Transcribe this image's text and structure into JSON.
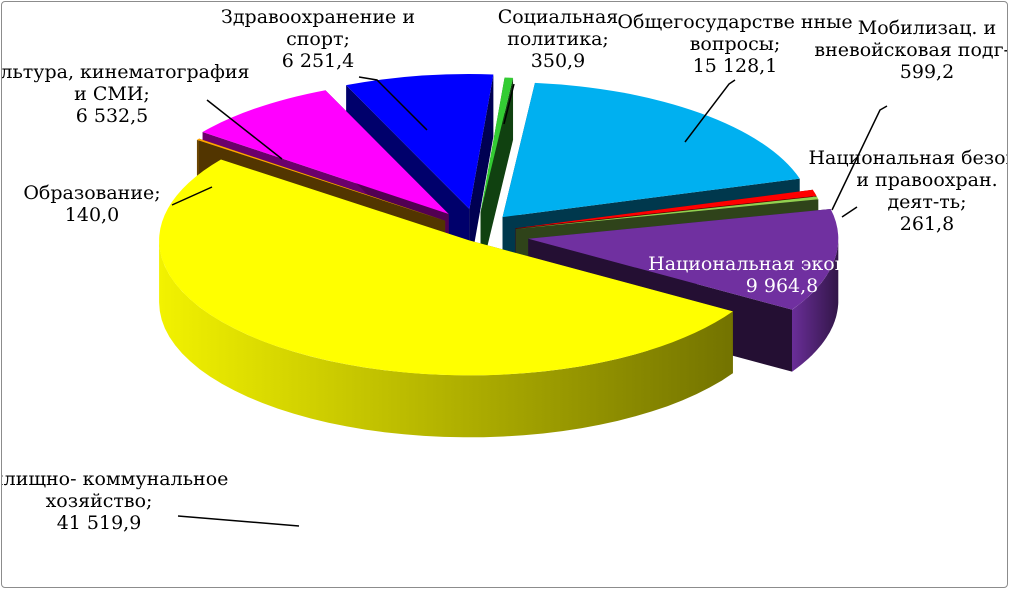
{
  "chart_data": {
    "type": "pie",
    "style": "3d-exploded",
    "title": "",
    "separator": ";",
    "slices": [
      {
        "name": "Общегосударстве нные вопросы",
        "value": 15128.1,
        "display": "15 128,1",
        "color": "#00b0f0"
      },
      {
        "name": "Мобилизац. и вневойсковая подг-ка",
        "value": 599.2,
        "display": "599,2",
        "color": "#ff0000"
      },
      {
        "name": "Национальная безоп-ть и правоохран. деят-ть",
        "value": 261.8,
        "display": "261,8",
        "color": "#92d050"
      },
      {
        "name": "Национальная экономика",
        "value": 9964.8,
        "display": "9 964,8",
        "color": "#7030a0"
      },
      {
        "name": "Жилищно- коммунальное хозяйство",
        "value": 41519.9,
        "display": "41 519,9",
        "color": "#ffff00"
      },
      {
        "name": "Образование",
        "value": 140.0,
        "display": "140,0",
        "color": "#ffa500"
      },
      {
        "name": "Культура, кинематография и СМИ",
        "value": 6532.5,
        "display": "6 532,5",
        "color": "#ff00ff"
      },
      {
        "name": "Здравоохранение и спорт",
        "value": 6251.4,
        "display": "6 251,4",
        "color": "#0000ff"
      },
      {
        "name": "Социальная политика",
        "value": 350.9,
        "display": "350,9",
        "color": "#33cc33"
      }
    ],
    "legend": "none",
    "data_labels": "outside-with-leaders"
  }
}
